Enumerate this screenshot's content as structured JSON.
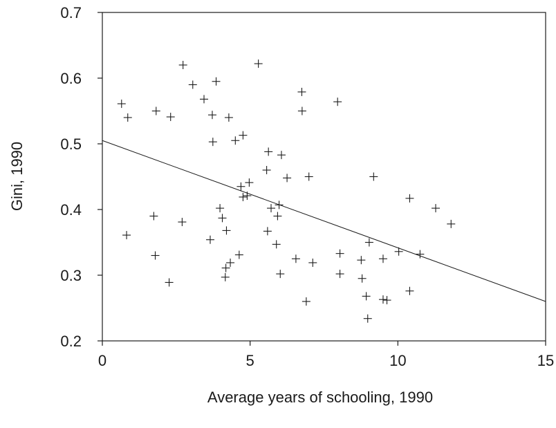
{
  "chart_data": {
    "type": "scatter",
    "xlabel": "Average years of schooling, 1990",
    "ylabel": "Gini, 1990",
    "xlim": [
      0,
      15
    ],
    "ylim": [
      0.2,
      0.7
    ],
    "xticks": [
      0,
      5,
      10,
      15
    ],
    "xtick_labels": [
      "0",
      "5",
      "10",
      "15"
    ],
    "yticks": [
      0.2,
      0.3,
      0.4,
      0.5,
      0.6,
      0.7
    ],
    "ytick_labels": [
      "0.2",
      "0.3",
      "0.4",
      "0.5",
      "0.6",
      "0.7"
    ],
    "marker": "+",
    "grid": false,
    "fit_line": {
      "x": [
        0,
        15
      ],
      "y": [
        0.505,
        0.26
      ]
    },
    "points": [
      [
        0.65,
        0.561
      ],
      [
        0.86,
        0.54
      ],
      [
        0.82,
        0.361
      ],
      [
        1.74,
        0.39
      ],
      [
        1.79,
        0.33
      ],
      [
        1.82,
        0.55
      ],
      [
        2.26,
        0.289
      ],
      [
        2.31,
        0.541
      ],
      [
        2.7,
        0.381
      ],
      [
        2.73,
        0.62
      ],
      [
        3.06,
        0.59
      ],
      [
        3.44,
        0.568
      ],
      [
        3.65,
        0.354
      ],
      [
        3.72,
        0.544
      ],
      [
        3.74,
        0.503
      ],
      [
        3.85,
        0.595
      ],
      [
        3.98,
        0.402
      ],
      [
        4.06,
        0.387
      ],
      [
        4.16,
        0.297
      ],
      [
        4.18,
        0.311
      ],
      [
        4.2,
        0.368
      ],
      [
        4.28,
        0.54
      ],
      [
        4.33,
        0.319
      ],
      [
        4.5,
        0.505
      ],
      [
        4.63,
        0.331
      ],
      [
        4.69,
        0.435
      ],
      [
        4.76,
        0.513
      ],
      [
        4.76,
        0.419
      ],
      [
        4.9,
        0.421
      ],
      [
        4.97,
        0.441
      ],
      [
        5.28,
        0.622
      ],
      [
        5.56,
        0.46
      ],
      [
        5.59,
        0.367
      ],
      [
        5.62,
        0.488
      ],
      [
        5.71,
        0.402
      ],
      [
        5.89,
        0.347
      ],
      [
        5.93,
        0.39
      ],
      [
        5.98,
        0.407
      ],
      [
        6.02,
        0.302
      ],
      [
        6.06,
        0.483
      ],
      [
        6.25,
        0.448
      ],
      [
        6.55,
        0.325
      ],
      [
        6.75,
        0.579
      ],
      [
        6.76,
        0.55
      ],
      [
        6.9,
        0.26
      ],
      [
        6.99,
        0.45
      ],
      [
        7.12,
        0.319
      ],
      [
        7.96,
        0.564
      ],
      [
        8.04,
        0.333
      ],
      [
        8.04,
        0.302
      ],
      [
        8.76,
        0.323
      ],
      [
        8.79,
        0.295
      ],
      [
        8.93,
        0.268
      ],
      [
        8.98,
        0.234
      ],
      [
        9.03,
        0.35
      ],
      [
        9.18,
        0.45
      ],
      [
        9.5,
        0.325
      ],
      [
        9.5,
        0.263
      ],
      [
        9.63,
        0.262
      ],
      [
        10.03,
        0.336
      ],
      [
        10.4,
        0.417
      ],
      [
        10.4,
        0.276
      ],
      [
        10.75,
        0.332
      ],
      [
        11.28,
        0.402
      ],
      [
        11.8,
        0.378
      ]
    ]
  }
}
